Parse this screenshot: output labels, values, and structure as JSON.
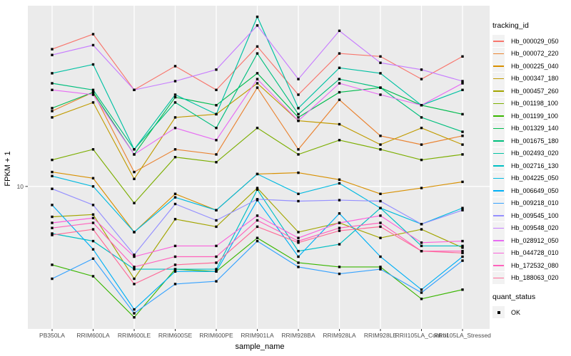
{
  "chart_data": {
    "type": "line",
    "title": "",
    "xlabel": "sample_name",
    "ylabel": "FPKM + 1",
    "y_scale": "log10",
    "y_ticks": [
      10
    ],
    "ylim": [
      1.64,
      99
    ],
    "grid": "ggplot-gray-panel-white-gridlines",
    "legend_position": "right",
    "panel_bg": "#EBEBEB",
    "gridline_color": "#FFFFFF",
    "marker": {
      "shape": "filled-square",
      "color": "#000000"
    },
    "x_categories": [
      "PB350LA",
      "RRIM600LA",
      "RRIM600LE",
      "RRIM600SE",
      "RRIM600PE",
      "RRIM901LA",
      "RRIM928BA",
      "RRIM928LA",
      "RRIM928LE",
      "RRII105LA_Control",
      "RRII105LA_Stressed"
    ],
    "series": [
      {
        "name": "Hb_000029_050",
        "color": "#F8766D",
        "values": [
          57,
          69,
          34,
          46,
          34,
          59,
          32,
          54,
          52,
          39,
          52
        ]
      },
      {
        "name": "Hb_000072_220",
        "color": "#EA8331",
        "values": [
          26,
          33,
          12,
          16,
          15,
          35,
          16,
          30,
          19,
          17,
          19
        ]
      },
      {
        "name": "Hb_000225_040",
        "color": "#D89000",
        "values": [
          12,
          11.1,
          5.6,
          9.1,
          7.4,
          11.7,
          11.9,
          10.9,
          9.1,
          9.8,
          10.6
        ]
      },
      {
        "name": "Hb_000347_180",
        "color": "#C09B00",
        "values": [
          24,
          29,
          11,
          24,
          25,
          37,
          23,
          22,
          17,
          21,
          17
        ]
      },
      {
        "name": "Hb_000457_260",
        "color": "#A3A500",
        "values": [
          6.8,
          7.0,
          3.1,
          6.6,
          6.0,
          9.8,
          5.6,
          6.3,
          5.2,
          5.8,
          4.6
        ]
      },
      {
        "name": "Hb_001198_100",
        "color": "#7CAE00",
        "values": [
          14,
          16,
          8.1,
          14.5,
          13.6,
          21,
          15,
          18,
          16,
          14,
          15
        ]
      },
      {
        "name": "Hb_001199_100",
        "color": "#39B600",
        "values": [
          3.7,
          3.2,
          1.9,
          3.5,
          3.4,
          5.2,
          3.8,
          3.6,
          3.6,
          2.4,
          2.7
        ]
      },
      {
        "name": "Hb_001329_140",
        "color": "#00BB4E",
        "values": [
          27,
          33,
          15,
          31,
          28,
          42,
          24,
          33,
          35,
          28,
          25
        ]
      },
      {
        "name": "Hb_001675_180",
        "color": "#00BF7D",
        "values": [
          37,
          34,
          16,
          29,
          21,
          54,
          25,
          39,
          35,
          24,
          20
        ]
      },
      {
        "name": "Hb_002493_020",
        "color": "#00C1A3",
        "values": [
          42,
          47,
          16,
          32,
          25,
          86,
          27,
          45,
          42,
          28,
          34
        ]
      },
      {
        "name": "Hb_002716_130",
        "color": "#00BFC4",
        "values": [
          5.5,
          5.0,
          3.5,
          3.5,
          3.5,
          9.6,
          4.4,
          4.8,
          7.6,
          4.7,
          4.7
        ]
      },
      {
        "name": "Hb_004225_050",
        "color": "#00BAE0",
        "values": [
          11.4,
          10,
          5.6,
          8.7,
          7.4,
          11.7,
          9.1,
          10.4,
          7.6,
          6.2,
          7.6
        ]
      },
      {
        "name": "Hb_006649_050",
        "color": "#00B0F6",
        "values": [
          7.9,
          4.5,
          2.1,
          3.4,
          3.4,
          8.4,
          4.1,
          7.1,
          4.1,
          2.7,
          4.1
        ]
      },
      {
        "name": "Hb_009218_010",
        "color": "#35A2FF",
        "values": [
          3.1,
          4.0,
          2.0,
          2.9,
          3.0,
          5.0,
          3.6,
          3.3,
          3.5,
          2.6,
          3.9
        ]
      },
      {
        "name": "Hb_009545_100",
        "color": "#9590FF",
        "values": [
          9.7,
          7.9,
          4.2,
          8.0,
          6.5,
          8.5,
          8.3,
          8.4,
          8.3,
          6.2,
          7.4
        ]
      },
      {
        "name": "Hb_009548_020",
        "color": "#C77CFF",
        "values": [
          53,
          60,
          34,
          38,
          44,
          77,
          39,
          72,
          48,
          44,
          38
        ]
      },
      {
        "name": "Hb_028912_050",
        "color": "#E76BF3",
        "values": [
          34,
          32,
          15,
          21,
          18,
          39,
          23,
          37,
          32,
          28,
          37
        ]
      },
      {
        "name": "Hb_044728_010",
        "color": "#FA62DB",
        "values": [
          6.3,
          6.7,
          4.1,
          4.7,
          4.7,
          6.9,
          5.2,
          6.3,
          6.9,
          4.9,
          5.0
        ]
      },
      {
        "name": "Hb_172532_080",
        "color": "#FF62BC",
        "values": [
          5.9,
          6.3,
          3.6,
          4.1,
          4.1,
          6.5,
          5.0,
          5.9,
          6.3,
          4.4,
          4.4
        ]
      },
      {
        "name": "Hb_188063_020",
        "color": "#FF6A98",
        "values": [
          5.4,
          5.8,
          2.9,
          3.7,
          3.8,
          6.0,
          4.9,
          5.7,
          6.0,
          4.4,
          4.3
        ]
      }
    ]
  },
  "legend": {
    "tracking_title": "tracking_id",
    "quant_title": "quant_status",
    "quant_items": [
      {
        "label": "OK",
        "marker": "filled-square"
      }
    ]
  }
}
